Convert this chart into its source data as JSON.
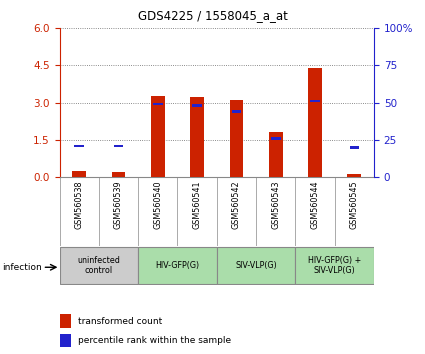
{
  "title": "GDS4225 / 1558045_a_at",
  "samples": [
    "GSM560538",
    "GSM560539",
    "GSM560540",
    "GSM560541",
    "GSM560542",
    "GSM560543",
    "GSM560544",
    "GSM560545"
  ],
  "transformed_count": [
    0.25,
    0.22,
    3.25,
    3.22,
    3.12,
    1.82,
    4.38,
    0.12
  ],
  "percentile_rank": [
    21,
    21,
    49,
    48,
    44,
    26,
    51,
    20
  ],
  "ylim_left": [
    0,
    6
  ],
  "ylim_right": [
    0,
    100
  ],
  "yticks_left": [
    0,
    1.5,
    3.0,
    4.5,
    6
  ],
  "yticks_right": [
    0,
    25,
    50,
    75,
    100
  ],
  "groups": [
    {
      "label": "uninfected\ncontrol",
      "indices": [
        0,
        1
      ],
      "color": "#cccccc"
    },
    {
      "label": "HIV-GFP(G)",
      "indices": [
        2,
        3
      ],
      "color": "#aaddaa"
    },
    {
      "label": "SIV-VLP(G)",
      "indices": [
        4,
        5
      ],
      "color": "#aaddaa"
    },
    {
      "label": "HIV-GFP(G) +\nSIV-VLP(G)",
      "indices": [
        6,
        7
      ],
      "color": "#aaddaa"
    }
  ],
  "bar_color": "#cc2200",
  "percentile_color": "#2222cc",
  "grid_color": "#666666",
  "left_axis_color": "#cc2200",
  "right_axis_color": "#2222cc",
  "infection_label": "infection",
  "legend_items": [
    "transformed count",
    "percentile rank within the sample"
  ],
  "bar_width": 0.35
}
